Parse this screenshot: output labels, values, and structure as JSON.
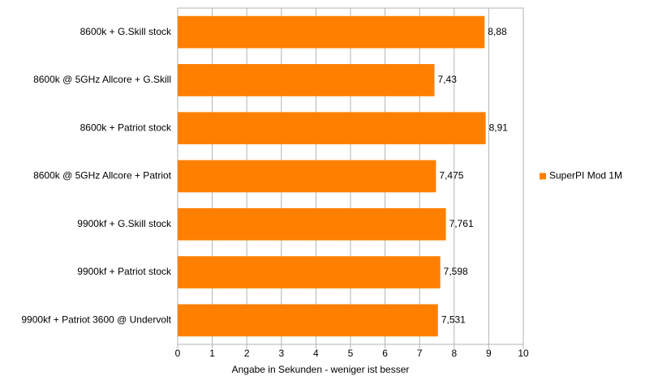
{
  "chart_data": {
    "type": "bar",
    "orientation": "horizontal",
    "x_label": "Angabe in Sekunden - weniger ist besser",
    "categories": [
      "8600k + G.Skill stock",
      "8600k @ 5GHz Allcore + G.Skill",
      "8600k + Patriot stock",
      "8600k @ 5GHz Allcore + Patriot",
      "9900kf + G.Skill stock",
      "9900kf + Patriot stock",
      "9900kf + Patriot 3600 @ Undervolt"
    ],
    "series": [
      {
        "name": "SuperPI Mod 1M",
        "color": "#ff8000",
        "values": [
          8.88,
          7.43,
          8.91,
          7.475,
          7.761,
          7.598,
          7.531
        ],
        "value_labels": [
          "8,88",
          "7,43",
          "8,91",
          "7,475",
          "7,761",
          "7,598",
          "7,531"
        ]
      }
    ],
    "xlim": [
      0,
      10
    ],
    "xticks": [
      0,
      1,
      2,
      3,
      4,
      5,
      6,
      7,
      8,
      9,
      10
    ],
    "grid": true,
    "legend": "right"
  }
}
